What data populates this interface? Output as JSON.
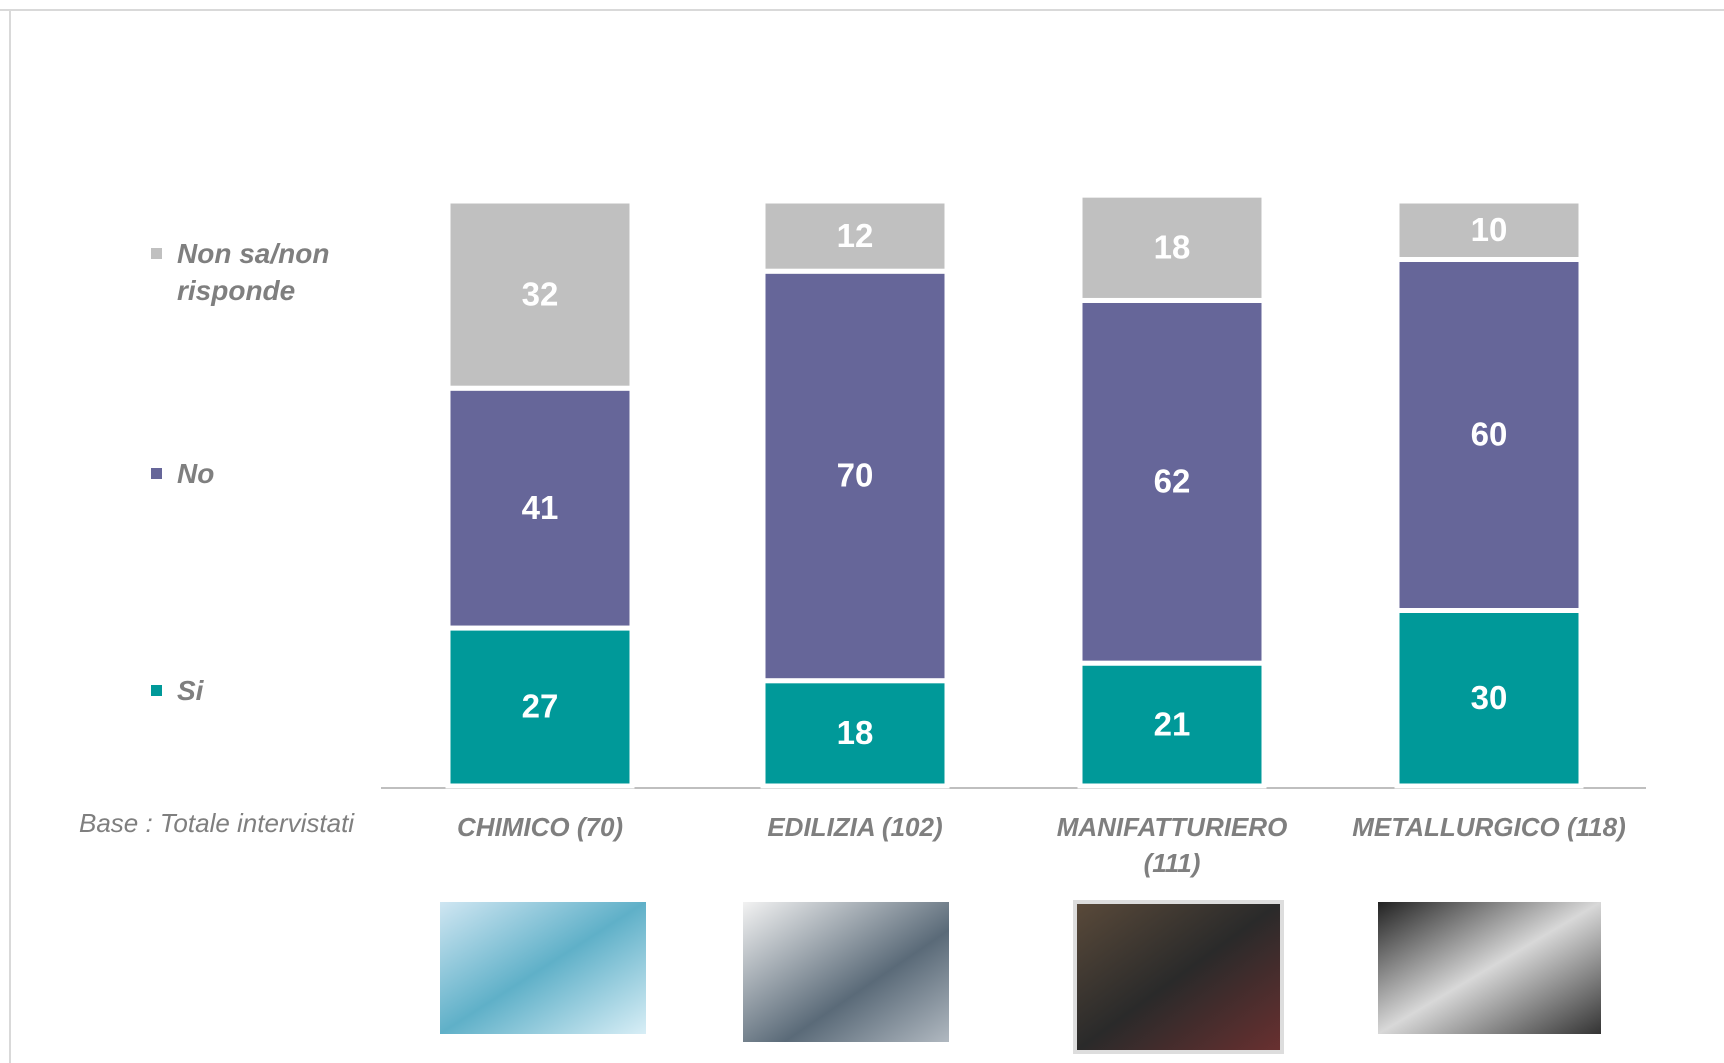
{
  "chart_data": {
    "type": "stacked_bar",
    "categories": [
      "CHIMICO (70)",
      "EDILIZIA (102)",
      "MANIFATTURIERO (111)",
      "METALLURGICO (118)"
    ],
    "series": [
      {
        "name": "Si",
        "color": "#009999",
        "values": [
          27,
          18,
          21,
          30
        ]
      },
      {
        "name": "No",
        "color": "#666699",
        "values": [
          41,
          70,
          62,
          60
        ]
      },
      {
        "name": "Non sa/non risponde",
        "color": "#c0c0c0",
        "values": [
          32,
          12,
          18,
          10
        ]
      }
    ],
    "ylim": [
      0,
      100
    ],
    "note": "Base : Totale intervistati"
  }
}
